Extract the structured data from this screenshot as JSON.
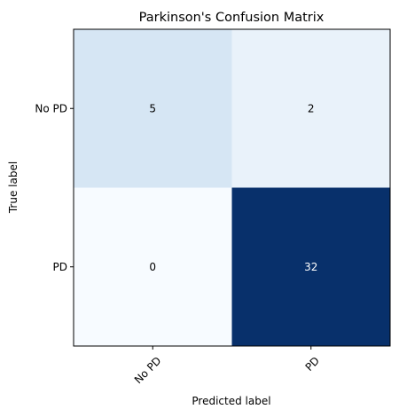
{
  "chart_data": {
    "type": "heatmap",
    "title": "Parkinson's Confusion Matrix",
    "xlabel": "Predicted label",
    "ylabel": "True label",
    "x_categories": [
      "No PD",
      "PD"
    ],
    "y_categories": [
      "No PD",
      "PD"
    ],
    "values": [
      [
        5,
        2
      ],
      [
        0,
        32
      ]
    ],
    "colormap": "Blues",
    "vmin": 0,
    "vmax": 32,
    "grid": false,
    "colors": {
      "low": "#f7fbff",
      "cell_0_0": "#d6e6f4",
      "cell_0_1": "#e9f2fa",
      "cell_1_0": "#f7fbff",
      "cell_1_1": "#08306b",
      "text_dark": "#000000",
      "text_light": "#ffffff"
    }
  }
}
